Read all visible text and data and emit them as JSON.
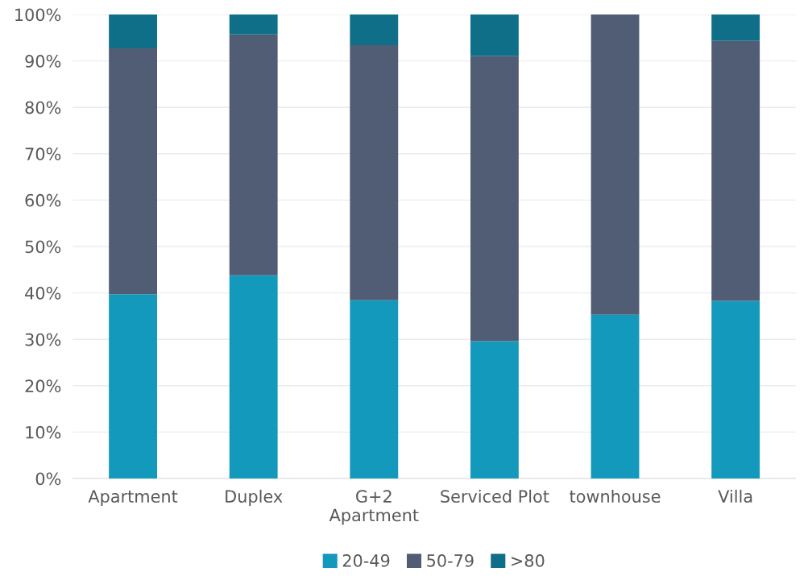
{
  "chart_data": {
    "type": "bar",
    "stacked": true,
    "categories": [
      "Apartment",
      "Duplex",
      "G+2\nApartment",
      "Serviced Plot",
      "townhouse",
      "Villa"
    ],
    "series": [
      {
        "name": "20-49",
        "color": "#1399bb",
        "values": [
          39.7,
          43.8,
          38.4,
          29.6,
          35.3,
          38.3
        ]
      },
      {
        "name": "50-79",
        "color": "#505d74",
        "values": [
          53.0,
          51.9,
          55.0,
          61.4,
          64.7,
          56.0
        ]
      },
      {
        "name": ">80",
        "color": "#0f6f88",
        "values": [
          7.3,
          4.3,
          6.6,
          9.0,
          0,
          5.7
        ]
      }
    ],
    "ylim": [
      0,
      100
    ],
    "yticks": [
      {
        "value": 0,
        "label": "0%"
      },
      {
        "value": 10,
        "label": "10%"
      },
      {
        "value": 20,
        "label": "20%"
      },
      {
        "value": 30,
        "label": "30%"
      },
      {
        "value": 40,
        "label": "40%"
      },
      {
        "value": 50,
        "label": "50%"
      },
      {
        "value": 60,
        "label": "60%"
      },
      {
        "value": 70,
        "label": "70%"
      },
      {
        "value": 80,
        "label": "80%"
      },
      {
        "value": 90,
        "label": "90%"
      },
      {
        "value": 100,
        "label": "100%"
      }
    ],
    "grid": "y",
    "legend": "bottom"
  }
}
